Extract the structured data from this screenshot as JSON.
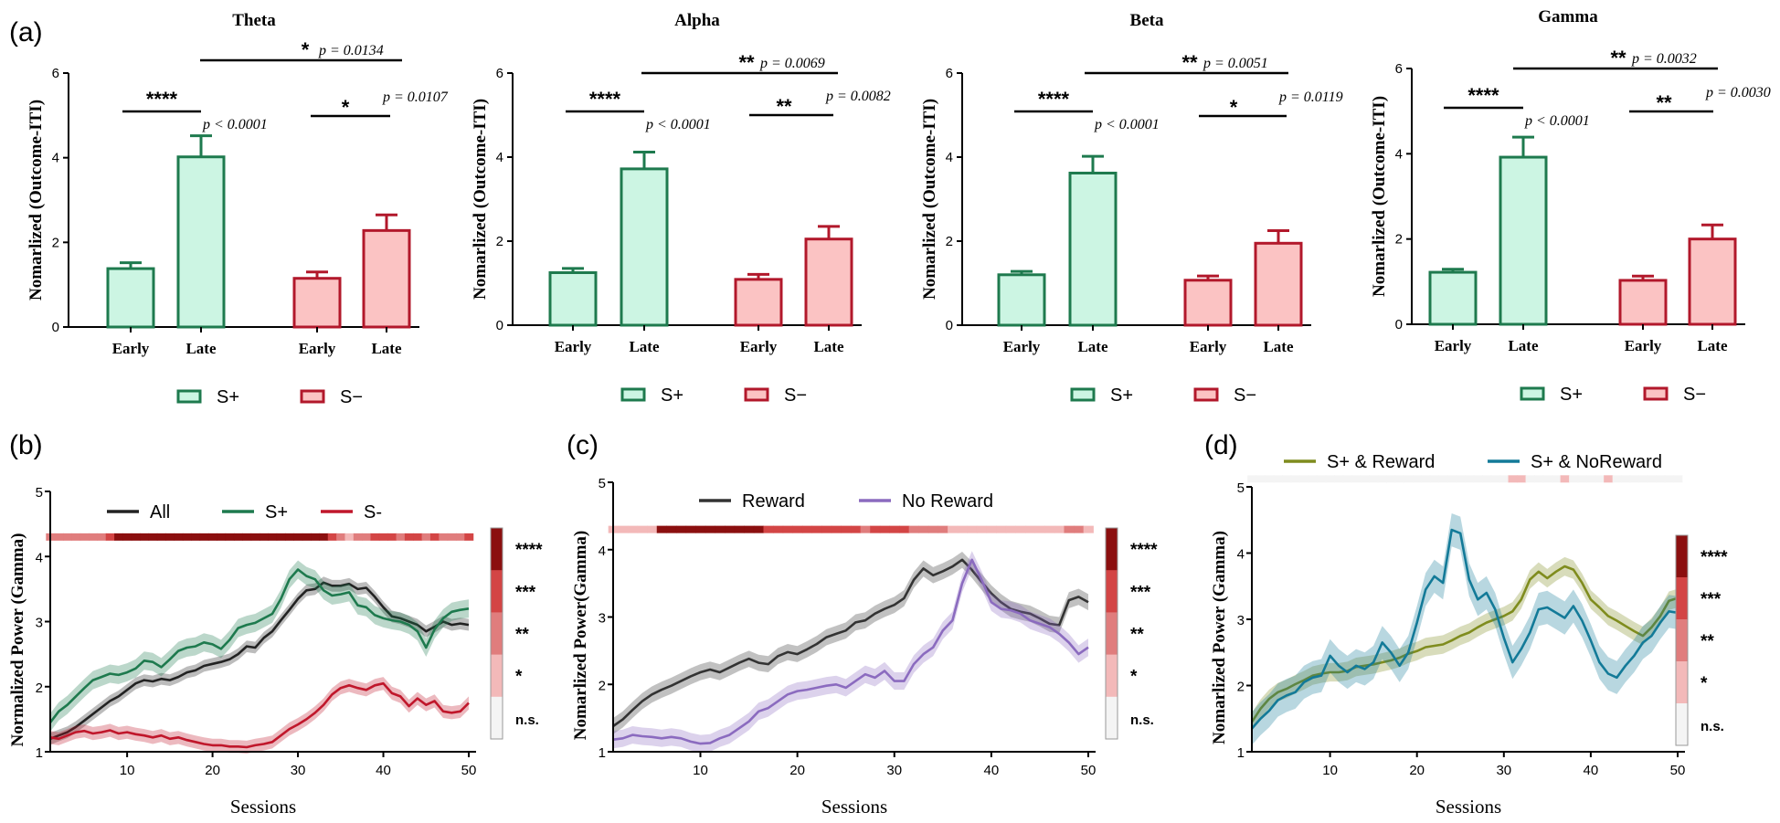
{
  "figure": {
    "colors": {
      "splus_stroke": "#1e7a4e",
      "splus_fill": "#ccf5e3",
      "sminus_stroke": "#b2182b",
      "sminus_fill": "#fbc3c3",
      "all": "#222222",
      "splus_line": "#1e7a4e",
      "sminus_line": "#c0172b",
      "reward": "#333333",
      "noreward": "#8b6bbf",
      "sr_reward": "#7f8c1e",
      "sr_noreward": "#137a98",
      "sig_levels": [
        "#f4f4f4",
        "#f3b9b9",
        "#e07d7d",
        "#d34545",
        "#8b0f0f"
      ]
    }
  },
  "chart_data": [
    {
      "id": "a_theta",
      "panel": "(a)",
      "type": "bar",
      "title": "Theta",
      "ylabel": "Nomarlized (Outcome-ITI)",
      "ylim": [
        0,
        6
      ],
      "yticks": [
        "0",
        "2",
        "4",
        "6"
      ],
      "categories": [
        "Early",
        "Late",
        "Early",
        "Late"
      ],
      "groups": [
        "S+",
        "S+",
        "S−",
        "S−"
      ],
      "values": [
        1.38,
        4.02,
        1.15,
        2.28
      ],
      "errors": [
        0.14,
        0.5,
        0.15,
        0.37
      ],
      "comparisons": [
        {
          "stars": "****",
          "p": "p < 0.0001"
        },
        {
          "stars": "*",
          "p": "p = 0.0107"
        },
        {
          "stars": "*",
          "p": "p = 0.0134"
        }
      ]
    },
    {
      "id": "a_alpha",
      "panel": "",
      "type": "bar",
      "title": "Alpha",
      "ylabel": "Nomarlized (Outcome-ITI)",
      "ylim": [
        0,
        6
      ],
      "yticks": [
        "0",
        "2",
        "4",
        "6"
      ],
      "categories": [
        "Early",
        "Late",
        "Early",
        "Late"
      ],
      "groups": [
        "S+",
        "S+",
        "S−",
        "S−"
      ],
      "values": [
        1.25,
        3.72,
        1.09,
        2.05
      ],
      "errors": [
        0.1,
        0.4,
        0.12,
        0.3
      ],
      "comparisons": [
        {
          "stars": "****",
          "p": "p < 0.0001"
        },
        {
          "stars": "**",
          "p": "p = 0.0082"
        },
        {
          "stars": "**",
          "p": "p = 0.0069"
        }
      ]
    },
    {
      "id": "a_beta",
      "panel": "",
      "type": "bar",
      "title": "Beta",
      "ylabel": "Nomarlized (Outcome-ITI)",
      "ylim": [
        0,
        6
      ],
      "yticks": [
        "0",
        "2",
        "4",
        "6"
      ],
      "categories": [
        "Early",
        "Late",
        "Early",
        "Late"
      ],
      "groups": [
        "S+",
        "S+",
        "S−",
        "S−"
      ],
      "values": [
        1.2,
        3.62,
        1.07,
        1.95
      ],
      "errors": [
        0.08,
        0.4,
        0.1,
        0.3
      ],
      "comparisons": [
        {
          "stars": "****",
          "p": "p < 0.0001"
        },
        {
          "stars": "*",
          "p": "p = 0.0119"
        },
        {
          "stars": "**",
          "p": "p = 0.0051"
        }
      ]
    },
    {
      "id": "a_gamma",
      "panel": "",
      "type": "bar",
      "title": "Gamma",
      "ylabel": "Nomarlized (Outcome-ITI)",
      "ylim": [
        0,
        6
      ],
      "yticks": [
        "0",
        "2",
        "4",
        "6"
      ],
      "categories": [
        "Early",
        "Late",
        "Early",
        "Late"
      ],
      "groups": [
        "S+",
        "S+",
        "S−",
        "S−"
      ],
      "values": [
        1.22,
        3.92,
        1.03,
        2.0
      ],
      "errors": [
        0.07,
        0.47,
        0.1,
        0.33
      ],
      "comparisons": [
        {
          "stars": "****",
          "p": "p < 0.0001"
        },
        {
          "stars": "**",
          "p": "p = 0.0030"
        },
        {
          "stars": "**",
          "p": "p = 0.0032"
        }
      ]
    },
    {
      "id": "b",
      "panel": "(b)",
      "type": "line",
      "xlabel": "Sessions",
      "ylabel": "Normalized Power (Gamma)",
      "xlim": [
        1,
        50
      ],
      "ylim": [
        1,
        5
      ],
      "xticks": [
        "10",
        "20",
        "30",
        "40",
        "50"
      ],
      "yticks": [
        "1",
        "2",
        "3",
        "4",
        "5"
      ],
      "series": [
        {
          "name": "All",
          "color_key": "all",
          "band": 0.09,
          "values": [
            1.2,
            1.25,
            1.3,
            1.38,
            1.48,
            1.58,
            1.68,
            1.78,
            1.85,
            1.95,
            2.05,
            2.1,
            2.08,
            2.12,
            2.1,
            2.15,
            2.22,
            2.25,
            2.32,
            2.35,
            2.38,
            2.42,
            2.5,
            2.62,
            2.6,
            2.75,
            2.85,
            3.02,
            3.18,
            3.35,
            3.48,
            3.5,
            3.6,
            3.55,
            3.55,
            3.58,
            3.5,
            3.52,
            3.38,
            3.22,
            3.08,
            3.05,
            3.0,
            2.95,
            2.85,
            2.92,
            3.0,
            2.95,
            2.97,
            2.95
          ]
        },
        {
          "name": "S+",
          "color_key": "splus_line",
          "band": 0.14,
          "values": [
            1.45,
            1.62,
            1.72,
            1.85,
            1.98,
            2.1,
            2.15,
            2.2,
            2.18,
            2.22,
            2.28,
            2.4,
            2.38,
            2.3,
            2.42,
            2.55,
            2.6,
            2.62,
            2.68,
            2.65,
            2.58,
            2.72,
            2.9,
            2.95,
            2.98,
            3.05,
            3.12,
            3.35,
            3.65,
            3.8,
            3.7,
            3.65,
            3.48,
            3.4,
            3.42,
            3.45,
            3.25,
            3.22,
            3.1,
            3.05,
            3.02,
            3.0,
            2.95,
            2.85,
            2.6,
            2.88,
            3.05,
            3.15,
            3.18,
            3.2
          ]
        },
        {
          "name": "S-",
          "color_key": "sminus_line",
          "band": 0.1,
          "values": [
            1.22,
            1.2,
            1.25,
            1.3,
            1.32,
            1.28,
            1.3,
            1.33,
            1.28,
            1.3,
            1.27,
            1.25,
            1.22,
            1.25,
            1.2,
            1.22,
            1.18,
            1.15,
            1.12,
            1.1,
            1.1,
            1.08,
            1.08,
            1.07,
            1.1,
            1.12,
            1.15,
            1.25,
            1.35,
            1.42,
            1.5,
            1.6,
            1.72,
            1.88,
            1.98,
            2.02,
            1.98,
            1.95,
            2.02,
            2.05,
            1.9,
            1.85,
            1.7,
            1.82,
            1.72,
            1.78,
            1.62,
            1.6,
            1.62,
            1.75
          ]
        }
      ],
      "sig_row_y": 4.3,
      "sig": [
        2,
        2,
        2,
        2,
        2,
        2,
        2,
        3,
        4,
        4,
        4,
        4,
        4,
        4,
        4,
        4,
        4,
        4,
        4,
        4,
        4,
        4,
        4,
        4,
        4,
        4,
        4,
        4,
        4,
        4,
        4,
        4,
        4,
        3,
        2,
        1,
        2,
        2,
        3,
        3,
        3,
        2,
        3,
        3,
        2,
        3,
        2,
        2,
        2,
        3
      ],
      "colorbar": [
        "****",
        "***",
        "**",
        "*",
        "n.s."
      ]
    },
    {
      "id": "c",
      "panel": "(c)",
      "type": "line",
      "xlabel": "Sessions",
      "ylabel": "Nomarlized Power(Gamma)",
      "xlim": [
        1,
        50
      ],
      "ylim": [
        1,
        5
      ],
      "xticks": [
        "10",
        "20",
        "30",
        "40",
        "50"
      ],
      "yticks": [
        "1",
        "2",
        "3",
        "4",
        "5"
      ],
      "series": [
        {
          "name": "Reward",
          "color_key": "reward",
          "band": 0.12,
          "values": [
            1.38,
            1.48,
            1.62,
            1.75,
            1.85,
            1.92,
            1.98,
            2.05,
            2.12,
            2.18,
            2.22,
            2.18,
            2.25,
            2.32,
            2.38,
            2.32,
            2.3,
            2.42,
            2.48,
            2.45,
            2.52,
            2.6,
            2.7,
            2.75,
            2.8,
            2.92,
            2.95,
            3.05,
            3.12,
            3.18,
            3.28,
            3.55,
            3.72,
            3.62,
            3.68,
            3.75,
            3.85,
            3.7,
            3.52,
            3.35,
            3.22,
            3.12,
            3.08,
            3.05,
            2.98,
            2.9,
            2.88,
            3.25,
            3.3,
            3.22
          ]
        },
        {
          "name": "No Reward",
          "color_key": "noreward",
          "band": 0.13,
          "values": [
            1.18,
            1.2,
            1.25,
            1.23,
            1.22,
            1.2,
            1.22,
            1.2,
            1.15,
            1.12,
            1.13,
            1.2,
            1.25,
            1.35,
            1.45,
            1.6,
            1.65,
            1.75,
            1.85,
            1.9,
            1.92,
            1.95,
            1.98,
            2.0,
            1.95,
            2.05,
            2.15,
            2.1,
            2.2,
            2.05,
            2.05,
            2.3,
            2.45,
            2.55,
            2.8,
            2.95,
            3.5,
            3.85,
            3.55,
            3.22,
            3.12,
            3.1,
            3.05,
            2.95,
            2.9,
            2.85,
            2.75,
            2.62,
            2.45,
            2.55
          ]
        }
      ],
      "sig_row_y": 4.3,
      "sig": [
        1,
        1,
        1,
        1,
        1,
        4,
        4,
        4,
        4,
        4,
        4,
        4,
        4,
        4,
        4,
        4,
        3,
        3,
        3,
        3,
        3,
        3,
        3,
        3,
        3,
        3,
        2,
        3,
        3,
        3,
        3,
        2,
        2,
        2,
        2,
        1,
        1,
        1,
        1,
        1,
        1,
        1,
        1,
        1,
        1,
        1,
        1,
        2,
        2,
        1
      ],
      "colorbar": [
        "****",
        "***",
        "**",
        "*",
        "n.s."
      ]
    },
    {
      "id": "d",
      "panel": "(d)",
      "type": "line",
      "xlabel": "Sessions",
      "ylabel": "Nomarlized Power (Gamma)",
      "xlim": [
        1,
        50
      ],
      "ylim": [
        1,
        5
      ],
      "xticks": [
        "10",
        "20",
        "30",
        "40",
        "50"
      ],
      "yticks": [
        "1",
        "2",
        "3",
        "4",
        "5"
      ],
      "series": [
        {
          "name": "S+ & Reward",
          "color_key": "sr_reward",
          "band": 0.14,
          "values": [
            1.45,
            1.65,
            1.8,
            1.9,
            1.95,
            2.02,
            2.08,
            2.15,
            2.18,
            2.2,
            2.2,
            2.22,
            2.28,
            2.3,
            2.32,
            2.35,
            2.38,
            2.42,
            2.48,
            2.52,
            2.58,
            2.6,
            2.62,
            2.68,
            2.75,
            2.8,
            2.88,
            2.95,
            3.0,
            3.05,
            3.12,
            3.3,
            3.6,
            3.72,
            3.62,
            3.72,
            3.8,
            3.75,
            3.55,
            3.3,
            3.18,
            3.05,
            2.98,
            2.9,
            2.82,
            2.75,
            2.88,
            3.05,
            3.28,
            3.32
          ]
        },
        {
          "name": "S+ & NoReward",
          "color_key": "sr_noreward",
          "band": 0.25,
          "values": [
            1.35,
            1.5,
            1.62,
            1.78,
            1.85,
            1.9,
            2.05,
            2.12,
            2.15,
            2.45,
            2.3,
            2.2,
            2.3,
            2.25,
            2.35,
            2.65,
            2.5,
            2.3,
            2.5,
            2.95,
            3.45,
            3.65,
            3.55,
            4.35,
            4.3,
            3.6,
            3.3,
            3.4,
            3.15,
            2.72,
            2.35,
            2.55,
            2.8,
            3.15,
            3.18,
            3.1,
            3.02,
            3.2,
            2.98,
            2.68,
            2.35,
            2.18,
            2.12,
            2.3,
            2.45,
            2.65,
            2.75,
            2.95,
            3.12,
            3.1
          ]
        }
      ],
      "sig_row_y": 5.12,
      "sig": [
        0,
        0,
        0,
        0,
        0,
        0,
        0,
        0,
        0,
        0,
        0,
        0,
        0,
        0,
        0,
        0,
        0,
        0,
        0,
        0,
        0,
        0,
        0,
        0,
        0,
        0,
        0,
        0,
        0,
        0,
        1,
        1,
        0,
        0,
        0,
        0,
        1,
        0,
        0,
        0,
        0,
        1,
        0,
        0,
        0,
        0,
        0,
        0,
        0,
        0
      ],
      "colorbar": [
        "****",
        "***",
        "**",
        "*",
        "n.s."
      ]
    }
  ]
}
